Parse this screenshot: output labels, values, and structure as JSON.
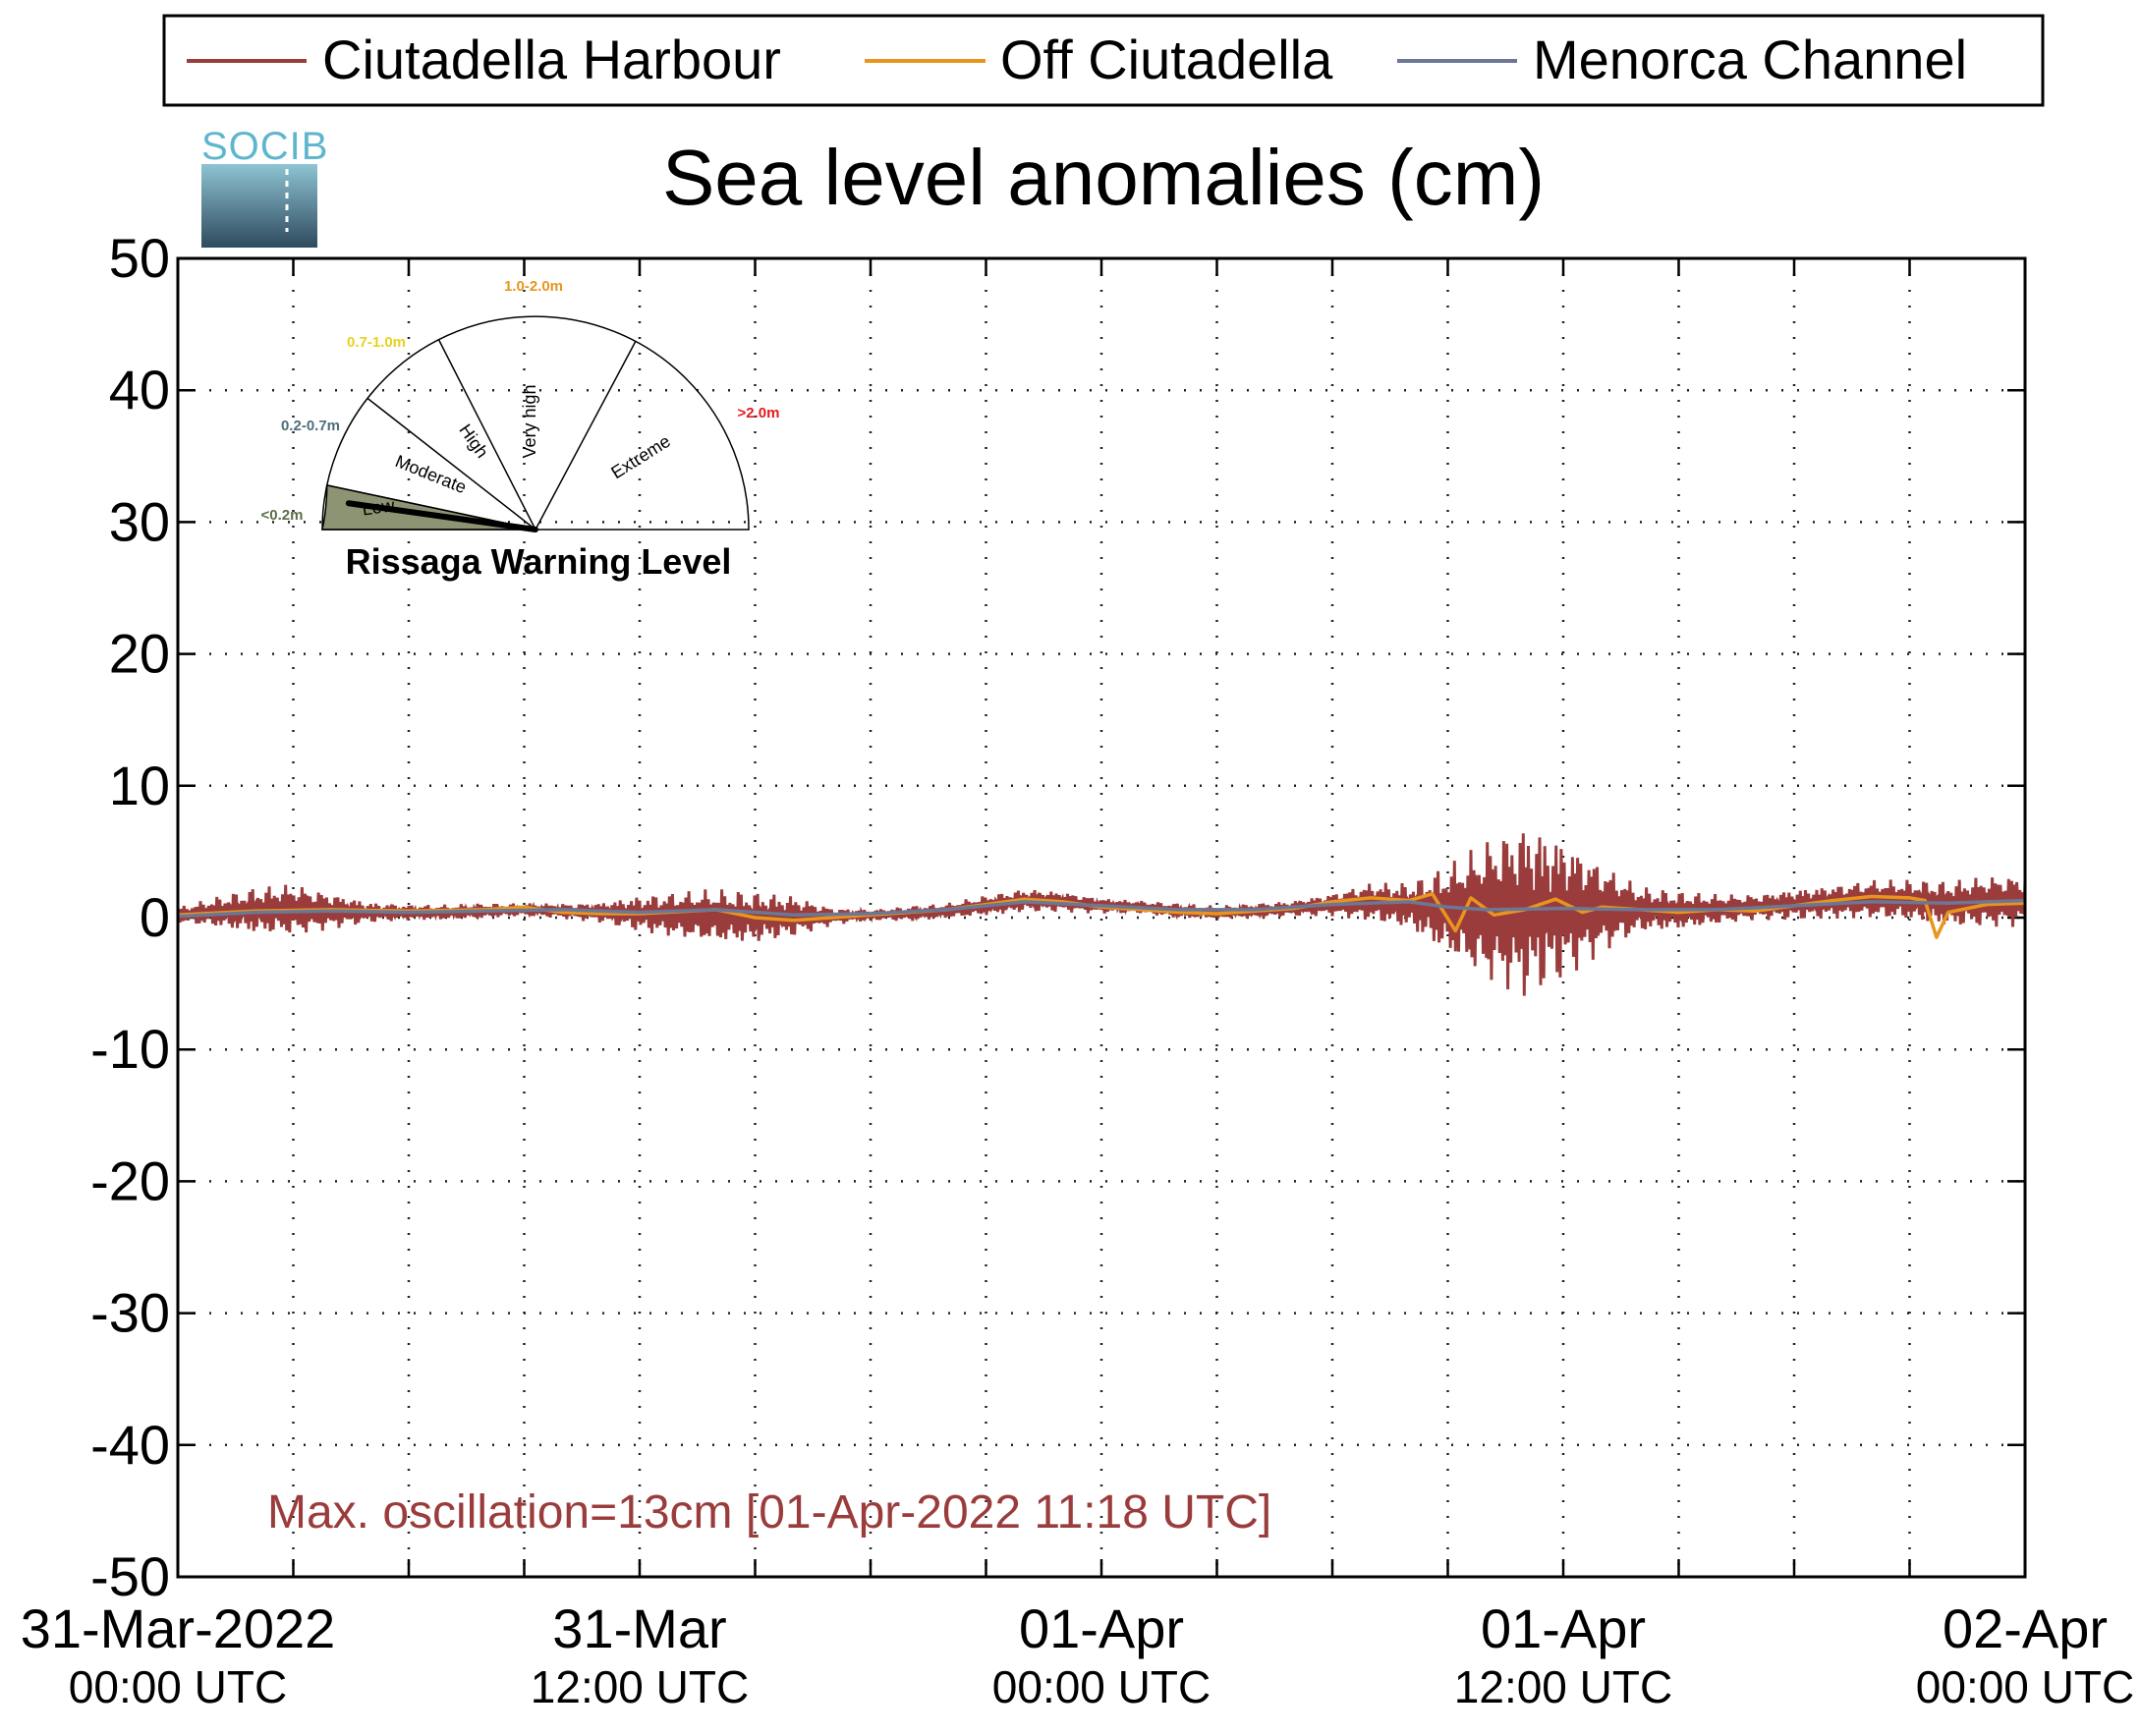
{
  "logo_text": "SOCIB",
  "chart_data": {
    "type": "line",
    "title": "Sea level anomalies (cm)",
    "ylim": [
      -50,
      50
    ],
    "y_ticks": [
      50,
      40,
      30,
      20,
      10,
      0,
      -10,
      -20,
      -30,
      -40,
      -50
    ],
    "x_range_hours": [
      0,
      48
    ],
    "x_ticks": [
      {
        "hour": 0,
        "line1": "31-Mar-2022",
        "line2": "00:00 UTC"
      },
      {
        "hour": 12,
        "line1": "31-Mar",
        "line2": "12:00 UTC"
      },
      {
        "hour": 24,
        "line1": "01-Apr",
        "line2": "00:00 UTC"
      },
      {
        "hour": 36,
        "line1": "01-Apr",
        "line2": "12:00 UTC"
      },
      {
        "hour": 48,
        "line1": "02-Apr",
        "line2": "00:00 UTC"
      }
    ],
    "grid": true,
    "legend_position": "top",
    "series": [
      {
        "name": "Ciutadella Harbour",
        "color": "#9b3c3c",
        "envelope": [
          [
            0,
            0.2,
            0.6
          ],
          [
            1,
            0.4,
            1.2
          ],
          [
            2,
            0.5,
            1.8
          ],
          [
            3,
            0.6,
            2.0
          ],
          [
            4,
            0.5,
            1.4
          ],
          [
            5,
            0.4,
            0.8
          ],
          [
            6,
            0.4,
            0.6
          ],
          [
            7,
            0.4,
            0.6
          ],
          [
            8,
            0.5,
            0.6
          ],
          [
            9,
            0.6,
            0.5
          ],
          [
            10,
            0.5,
            0.6
          ],
          [
            11,
            0.4,
            0.8
          ],
          [
            12,
            0.3,
            1.4
          ],
          [
            13,
            0.2,
            1.8
          ],
          [
            14,
            0.1,
            2.1
          ],
          [
            15,
            0.0,
            2.0
          ],
          [
            16,
            0.1,
            1.6
          ],
          [
            17,
            0.1,
            0.7
          ],
          [
            18,
            0.2,
            0.4
          ],
          [
            19,
            0.3,
            0.6
          ],
          [
            20,
            0.5,
            0.6
          ],
          [
            21,
            0.9,
            0.8
          ],
          [
            22,
            1.3,
            0.9
          ],
          [
            23,
            1.2,
            0.8
          ],
          [
            24,
            0.9,
            0.6
          ],
          [
            25,
            0.8,
            0.5
          ],
          [
            26,
            0.5,
            0.6
          ],
          [
            27,
            0.4,
            0.5
          ],
          [
            28,
            0.5,
            0.6
          ],
          [
            29,
            0.7,
            0.6
          ],
          [
            30,
            1.0,
            0.9
          ],
          [
            31,
            1.2,
            1.5
          ],
          [
            32,
            0.9,
            1.8
          ],
          [
            33,
            0.5,
            3.5
          ],
          [
            34,
            0.5,
            5.5
          ],
          [
            35,
            0.6,
            6.8
          ],
          [
            36,
            0.7,
            5.5
          ],
          [
            37,
            0.7,
            3.5
          ],
          [
            38,
            0.6,
            1.8
          ],
          [
            39,
            0.5,
            1.5
          ],
          [
            40,
            0.6,
            1.2
          ],
          [
            41,
            0.8,
            1.0
          ],
          [
            42,
            1.0,
            1.2
          ],
          [
            43,
            1.2,
            1.3
          ],
          [
            44,
            1.4,
            1.5
          ],
          [
            45,
            1.3,
            1.6
          ],
          [
            46,
            1.0,
            1.8
          ],
          [
            47,
            1.2,
            2.0
          ],
          [
            48,
            1.3,
            2.0
          ]
        ]
      },
      {
        "name": "Off Ciutadella",
        "color": "#e8951e",
        "points": [
          [
            0,
            0.2
          ],
          [
            2,
            0.5
          ],
          [
            4,
            0.6
          ],
          [
            6,
            0.5
          ],
          [
            8,
            0.6
          ],
          [
            9,
            0.8
          ],
          [
            10,
            0.4
          ],
          [
            11,
            0.3
          ],
          [
            12,
            0.3
          ],
          [
            14,
            0.6
          ],
          [
            15,
            0.0
          ],
          [
            16,
            -0.2
          ],
          [
            17,
            0.0
          ],
          [
            18,
            0.2
          ],
          [
            20,
            0.6
          ],
          [
            21,
            1.0
          ],
          [
            22,
            1.4
          ],
          [
            23,
            1.2
          ],
          [
            24,
            0.8
          ],
          [
            25,
            0.6
          ],
          [
            26,
            0.4
          ],
          [
            27,
            0.3
          ],
          [
            28,
            0.5
          ],
          [
            29,
            0.7
          ],
          [
            30,
            1.2
          ],
          [
            31,
            1.5
          ],
          [
            32,
            1.3
          ],
          [
            32.6,
            1.8
          ],
          [
            33.2,
            -1.0
          ],
          [
            33.6,
            1.5
          ],
          [
            34.2,
            0.2
          ],
          [
            35,
            0.6
          ],
          [
            35.8,
            1.4
          ],
          [
            36.5,
            0.4
          ],
          [
            37,
            0.8
          ],
          [
            38,
            0.6
          ],
          [
            39,
            0.4
          ],
          [
            40,
            0.6
          ],
          [
            41,
            0.5
          ],
          [
            42,
            0.9
          ],
          [
            43,
            1.3
          ],
          [
            44,
            1.6
          ],
          [
            45,
            1.5
          ],
          [
            45.4,
            1.3
          ],
          [
            45.7,
            -1.5
          ],
          [
            46,
            0.4
          ],
          [
            47,
            1.0
          ],
          [
            48,
            1.1
          ]
        ]
      },
      {
        "name": "Menorca Channel",
        "color": "#6c7796",
        "points": [
          [
            0,
            0.1
          ],
          [
            2,
            0.4
          ],
          [
            4,
            0.5
          ],
          [
            6,
            0.4
          ],
          [
            8,
            0.5
          ],
          [
            10,
            0.6
          ],
          [
            12,
            0.4
          ],
          [
            14,
            0.6
          ],
          [
            16,
            0.2
          ],
          [
            18,
            0.3
          ],
          [
            20,
            0.6
          ],
          [
            22,
            1.2
          ],
          [
            24,
            0.9
          ],
          [
            26,
            0.6
          ],
          [
            28,
            0.6
          ],
          [
            30,
            1.0
          ],
          [
            32,
            1.2
          ],
          [
            33,
            0.8
          ],
          [
            34,
            0.6
          ],
          [
            36,
            0.7
          ],
          [
            38,
            0.6
          ],
          [
            40,
            0.6
          ],
          [
            42,
            0.9
          ],
          [
            44,
            1.2
          ],
          [
            46,
            1.1
          ],
          [
            48,
            1.3
          ]
        ]
      }
    ],
    "annotation": {
      "text": "Max. oscillation=13cm [01-Apr-2022 11:18 UTC]",
      "color": "#9b3c3c"
    },
    "gauge": {
      "title": "Rissaga Warning Level",
      "current_level": "Low",
      "levels": [
        {
          "label": "Low",
          "range": "<0.2m",
          "range_color": "#5d6d4a"
        },
        {
          "label": "Moderate",
          "range": "0.2-0.7m",
          "range_color": "#4f6d7a"
        },
        {
          "label": "High",
          "range": "0.7-1.0m",
          "range_color": "#e6d21e"
        },
        {
          "label": "Very high",
          "range": "1.0-2.0m",
          "range_color": "#e8951e"
        },
        {
          "label": "Extreme",
          "range": ">2.0m",
          "range_color": "#e31a1a"
        }
      ],
      "active_fill": "#8c9473"
    }
  }
}
